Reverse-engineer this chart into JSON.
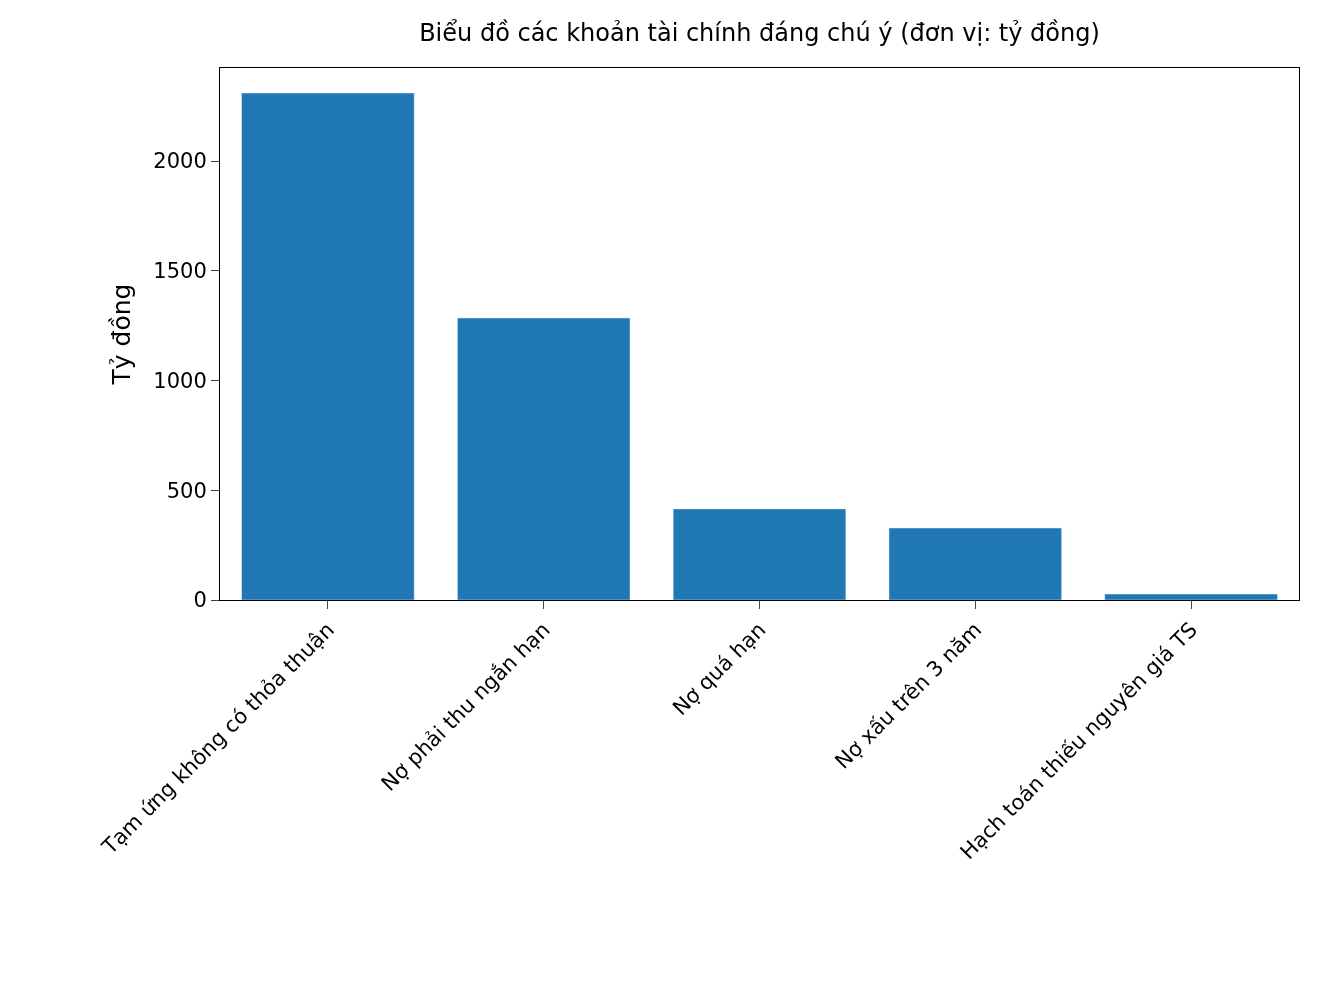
{
  "chart_data": {
    "type": "bar",
    "title": "Biểu đồ các khoản tài chính đáng chú ý (đơn vị: tỷ đồng)",
    "ylabel": "Tỷ đồng",
    "categories": [
      "Tạm ứng không có thỏa thuận",
      "Nợ phải thu ngắn hạn",
      "Nợ quá hạn",
      "Nợ xấu trên 3 năm",
      "Hạch toán thiếu nguyên giá TS"
    ],
    "values": [
      2310,
      1285,
      415,
      328,
      27
    ],
    "color": "#1f77b4",
    "ylim": [
      0,
      2424
    ],
    "yticks": [
      0,
      500,
      1000,
      1500,
      2000
    ],
    "grid": false,
    "legend": false
  }
}
